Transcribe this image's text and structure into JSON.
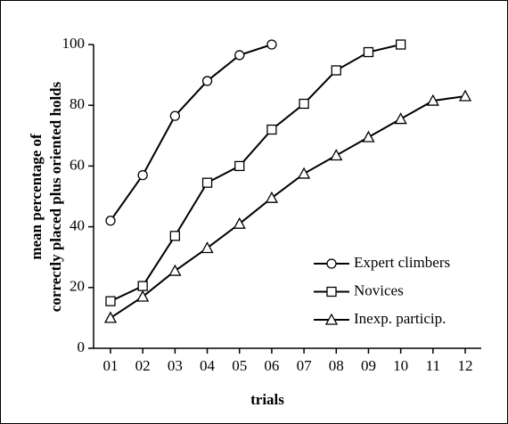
{
  "chart_data": {
    "type": "line",
    "xlabel": "trials",
    "ylabel": [
      "mean percentage of",
      "correctly placed plus oriented holds"
    ],
    "categories": [
      "01",
      "02",
      "03",
      "04",
      "05",
      "06",
      "07",
      "08",
      "09",
      "10",
      "11",
      "12"
    ],
    "series": [
      {
        "name": "Expert climbers",
        "color": "#000000",
        "marker": "circle",
        "values": [
          42,
          57,
          76.5,
          88,
          96.5,
          100,
          null,
          null,
          null,
          null,
          null,
          null
        ]
      },
      {
        "name": "Novices",
        "color": "#000000",
        "marker": "square",
        "values": [
          15.5,
          20.5,
          37,
          54.5,
          60,
          72,
          80.5,
          91.5,
          97.5,
          100,
          null,
          null
        ]
      },
      {
        "name": "Inexp. particip.",
        "color": "#000000",
        "marker": "triangle",
        "values": [
          10,
          17,
          25.5,
          33,
          41,
          49.5,
          57.5,
          63.5,
          69.5,
          75.5,
          81.5,
          83
        ]
      }
    ],
    "ylim": [
      0,
      100
    ],
    "yticks": [
      0,
      20,
      40,
      60,
      80,
      100
    ],
    "grid": false,
    "legend": "lower right"
  }
}
